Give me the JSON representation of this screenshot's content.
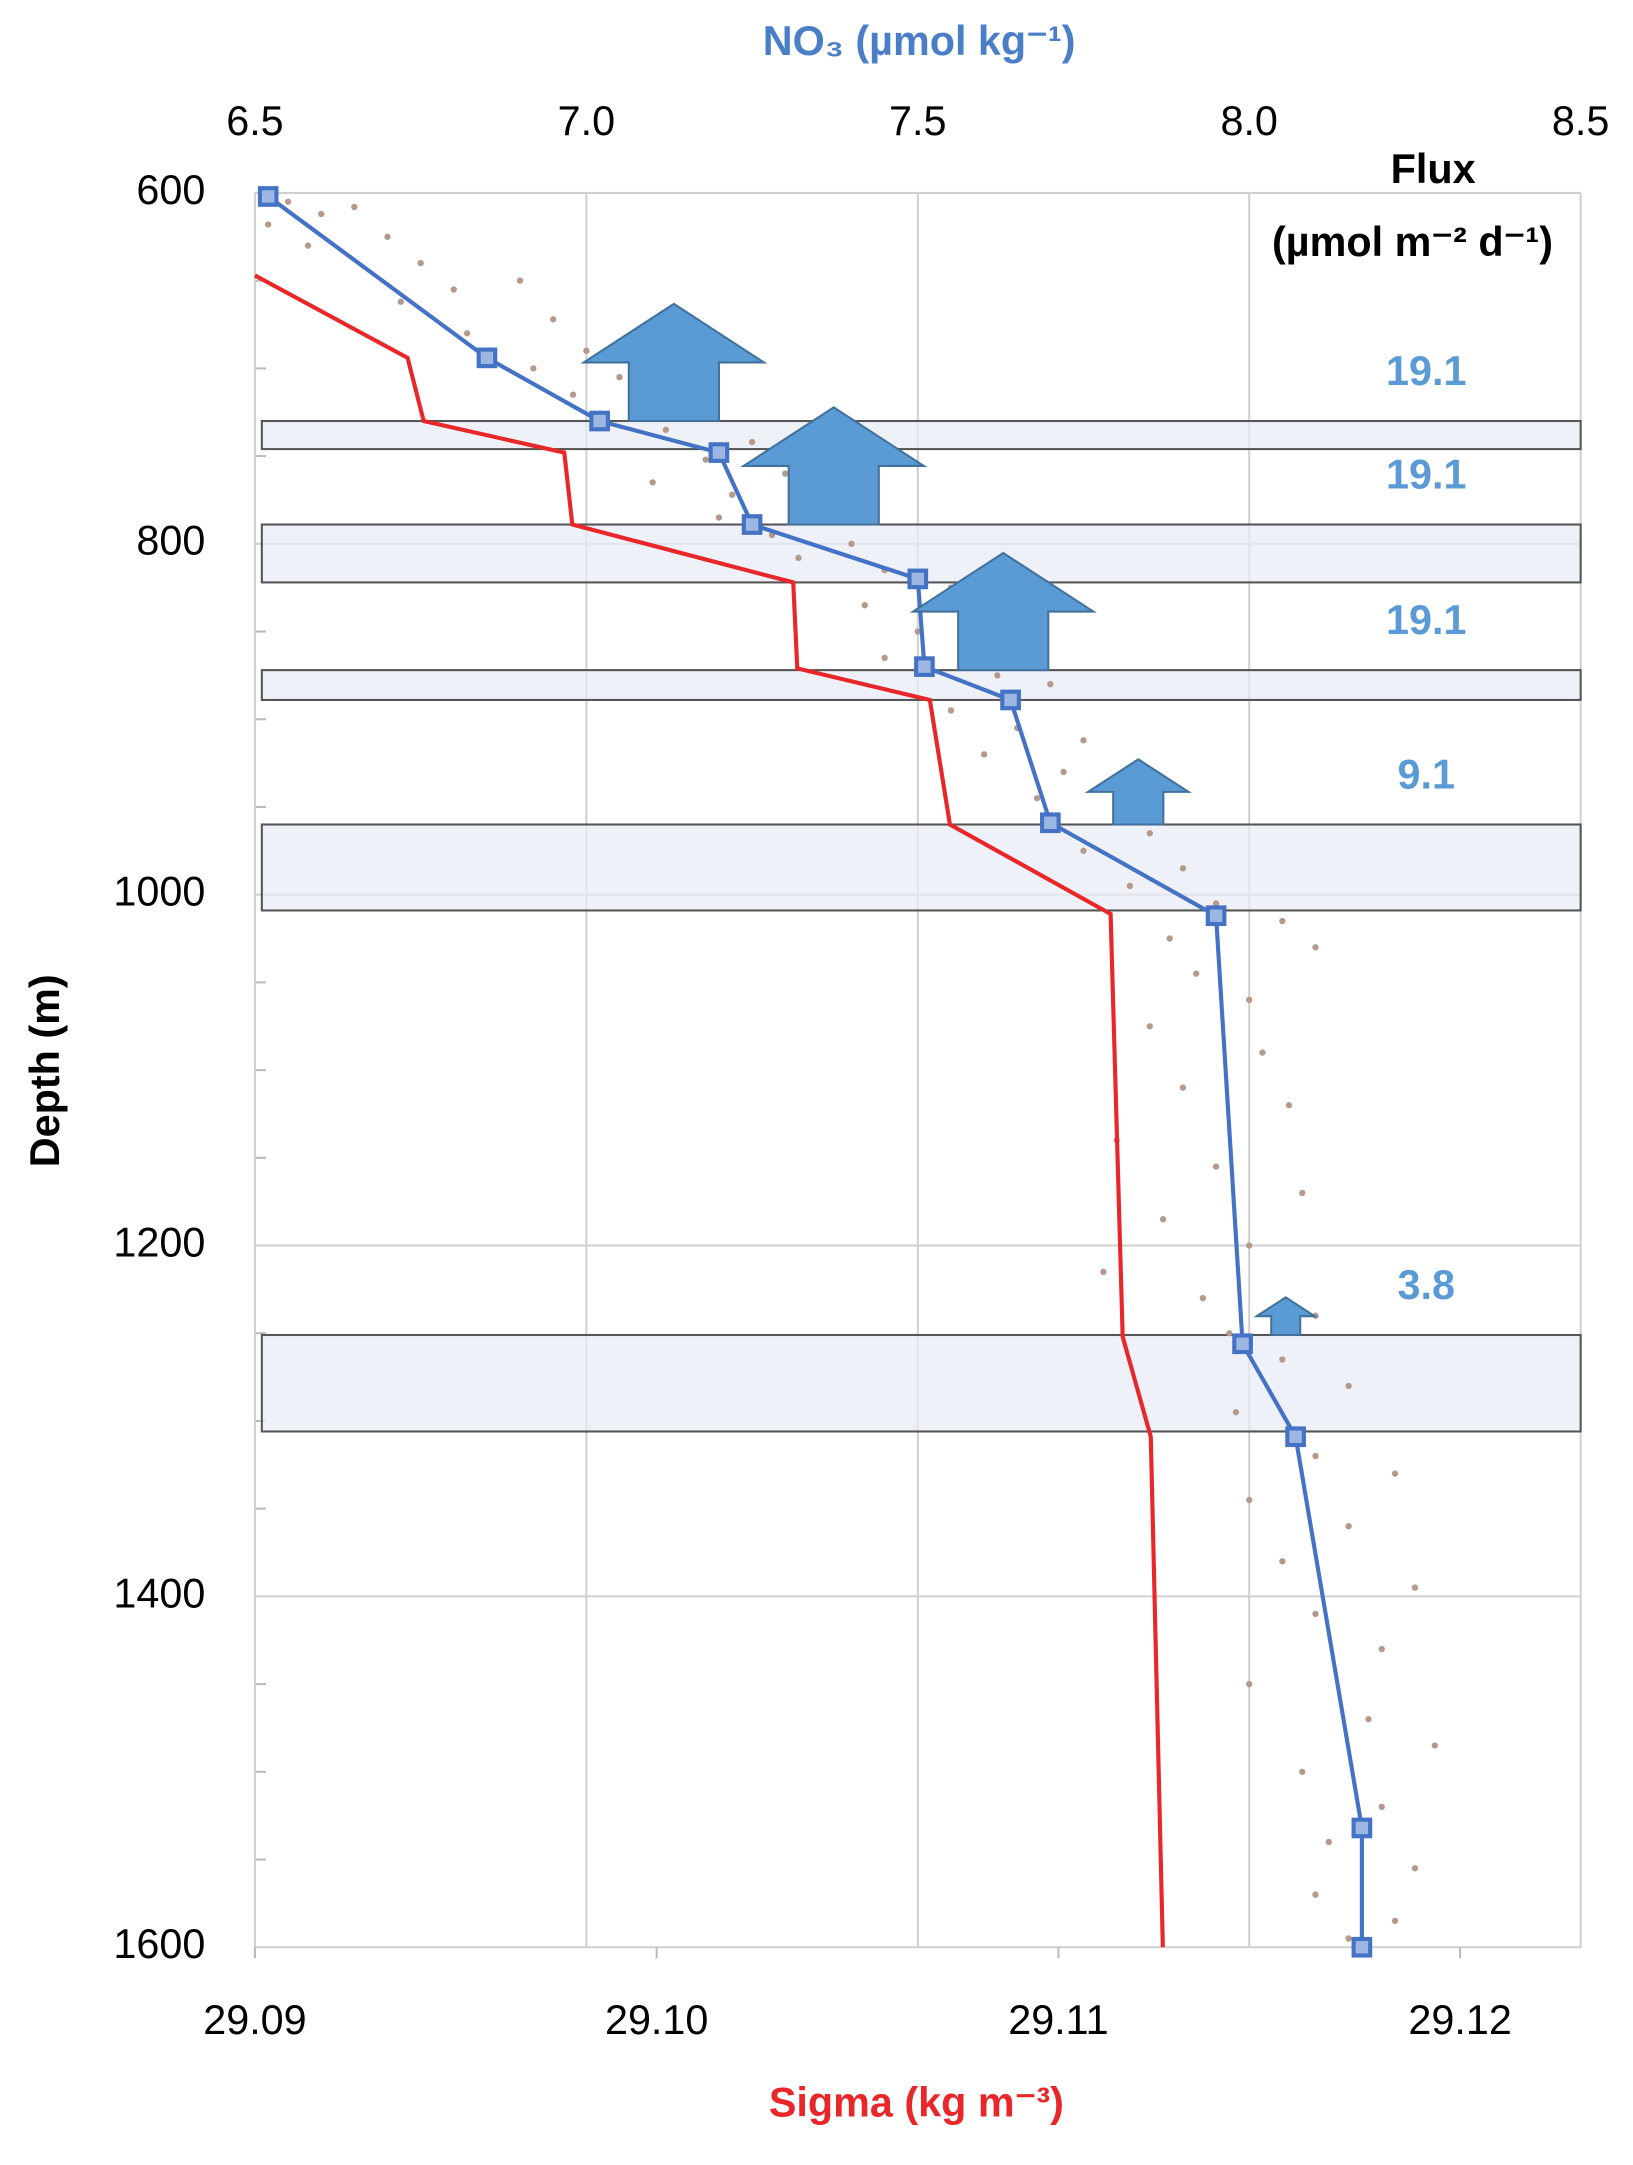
{
  "chart_data": {
    "type": "line",
    "x2_title": "NO₃ (µmol kg⁻¹)",
    "x_title": "Sigma (kg m⁻³)",
    "y_title": "Depth (m)",
    "flux_title": "Flux",
    "flux_unit": "(µmol m⁻² d⁻¹)",
    "x2lim": [
      6.5,
      8.5
    ],
    "x2ticks": [
      6.5,
      {
        "value": 7,
        "label": "7.0"
      },
      7.5,
      {
        "value": 8,
        "label": "8.0"
      },
      8.5
    ],
    "xlim": [
      29.09,
      29.123
    ],
    "xticks": [
      29.09,
      {
        "value": 29.1,
        "label": "29.10"
      },
      29.11,
      29.12
    ],
    "ylim": [
      1600,
      600
    ],
    "yticks": [
      600,
      800,
      1000,
      1200,
      1400,
      1600
    ],
    "yminorticks": [
      650,
      700,
      750,
      850,
      900,
      950,
      1050,
      1100,
      1150,
      1250,
      1300,
      1350,
      1450,
      1500,
      1550
    ],
    "grid": true,
    "series": [
      {
        "type": "scatter",
        "axis": "x2",
        "color": "#b49a8c",
        "x": [
          6.55,
          6.6,
          6.52,
          6.65,
          6.7,
          6.58,
          6.75,
          6.8,
          6.72,
          6.9,
          6.95,
          6.82,
          7.0,
          6.92,
          7.05,
          6.98,
          7.1,
          7.15,
          7.12,
          7.25,
          7.18,
          7.3,
          7.1,
          7.22,
          7.35,
          7.2,
          7.28,
          7.4,
          7.32,
          7.45,
          7.55,
          7.42,
          7.6,
          7.5,
          7.58,
          7.45,
          7.62,
          7.7,
          7.55,
          7.65,
          7.75,
          7.6,
          7.72,
          7.68,
          7.8,
          7.85,
          7.75,
          7.9,
          7.82,
          7.95,
          8.05,
          7.88,
          8.1,
          7.92,
          8.0,
          7.85,
          8.02,
          7.9,
          8.06,
          7.8,
          7.95,
          8.08,
          7.87,
          8.0,
          7.78,
          7.93,
          8.1,
          7.97,
          8.05,
          8.15,
          7.98,
          8.1,
          8.22,
          8.0,
          8.15,
          8.05,
          8.25,
          8.1,
          8.2,
          8.0,
          8.18,
          8.28,
          8.08,
          8.2,
          8.12,
          8.25,
          8.1,
          8.22,
          8.15
        ],
        "y": [
          605,
          612,
          618,
          608,
          625,
          630,
          640,
          655,
          662,
          650,
          672,
          680,
          690,
          700,
          705,
          715,
          712,
          725,
          735,
          742,
          752,
          760,
          765,
          772,
          778,
          785,
          795,
          800,
          808,
          815,
          825,
          835,
          842,
          850,
          858,
          865,
          875,
          880,
          895,
          905,
          912,
          920,
          930,
          945,
          952,
          965,
          975,
          985,
          995,
          1005,
          1015,
          1025,
          1030,
          1045,
          1060,
          1075,
          1090,
          1110,
          1120,
          1140,
          1155,
          1170,
          1185,
          1200,
          1215,
          1230,
          1240,
          1250,
          1265,
          1280,
          1295,
          1320,
          1330,
          1345,
          1360,
          1380,
          1395,
          1410,
          1430,
          1450,
          1470,
          1485,
          1500,
          1520,
          1540,
          1555,
          1570,
          1585,
          1595
        ]
      },
      {
        "type": "line",
        "axis": "x2",
        "color": "#4472c4",
        "marker": "square",
        "x": [
          6.52,
          6.85,
          7.02,
          7.2,
          7.25,
          7.5,
          7.51,
          7.64,
          7.7,
          7.95,
          7.99,
          8.07,
          8.17,
          8.17
        ],
        "y": [
          602,
          694,
          730,
          748,
          789,
          820,
          870,
          889,
          959,
          1012,
          1256,
          1309,
          1532,
          1600
        ]
      },
      {
        "type": "line",
        "color": "#e8272a",
        "x": [
          29.09,
          29.0938,
          29.0942,
          29.0977,
          29.0979,
          29.1034,
          29.1035,
          29.1068,
          29.1073,
          29.1113,
          29.1116,
          29.1123,
          29.1126
        ],
        "y": [
          647,
          694,
          730,
          748,
          789,
          822,
          871,
          889,
          960,
          1011,
          1252,
          1309,
          1600
        ]
      }
    ],
    "layers": [
      {
        "flux": 19.1,
        "top": 730,
        "bottom": 746
      },
      {
        "flux": 19.1,
        "top": 789,
        "bottom": 822
      },
      {
        "flux": 19.1,
        "top": 872,
        "bottom": 889
      },
      {
        "flux": 9.1,
        "top": 960,
        "bottom": 1009
      },
      {
        "flux": 3.8,
        "top": 1251,
        "bottom": 1306
      }
    ],
    "flux_color": "#5b9bd5"
  }
}
